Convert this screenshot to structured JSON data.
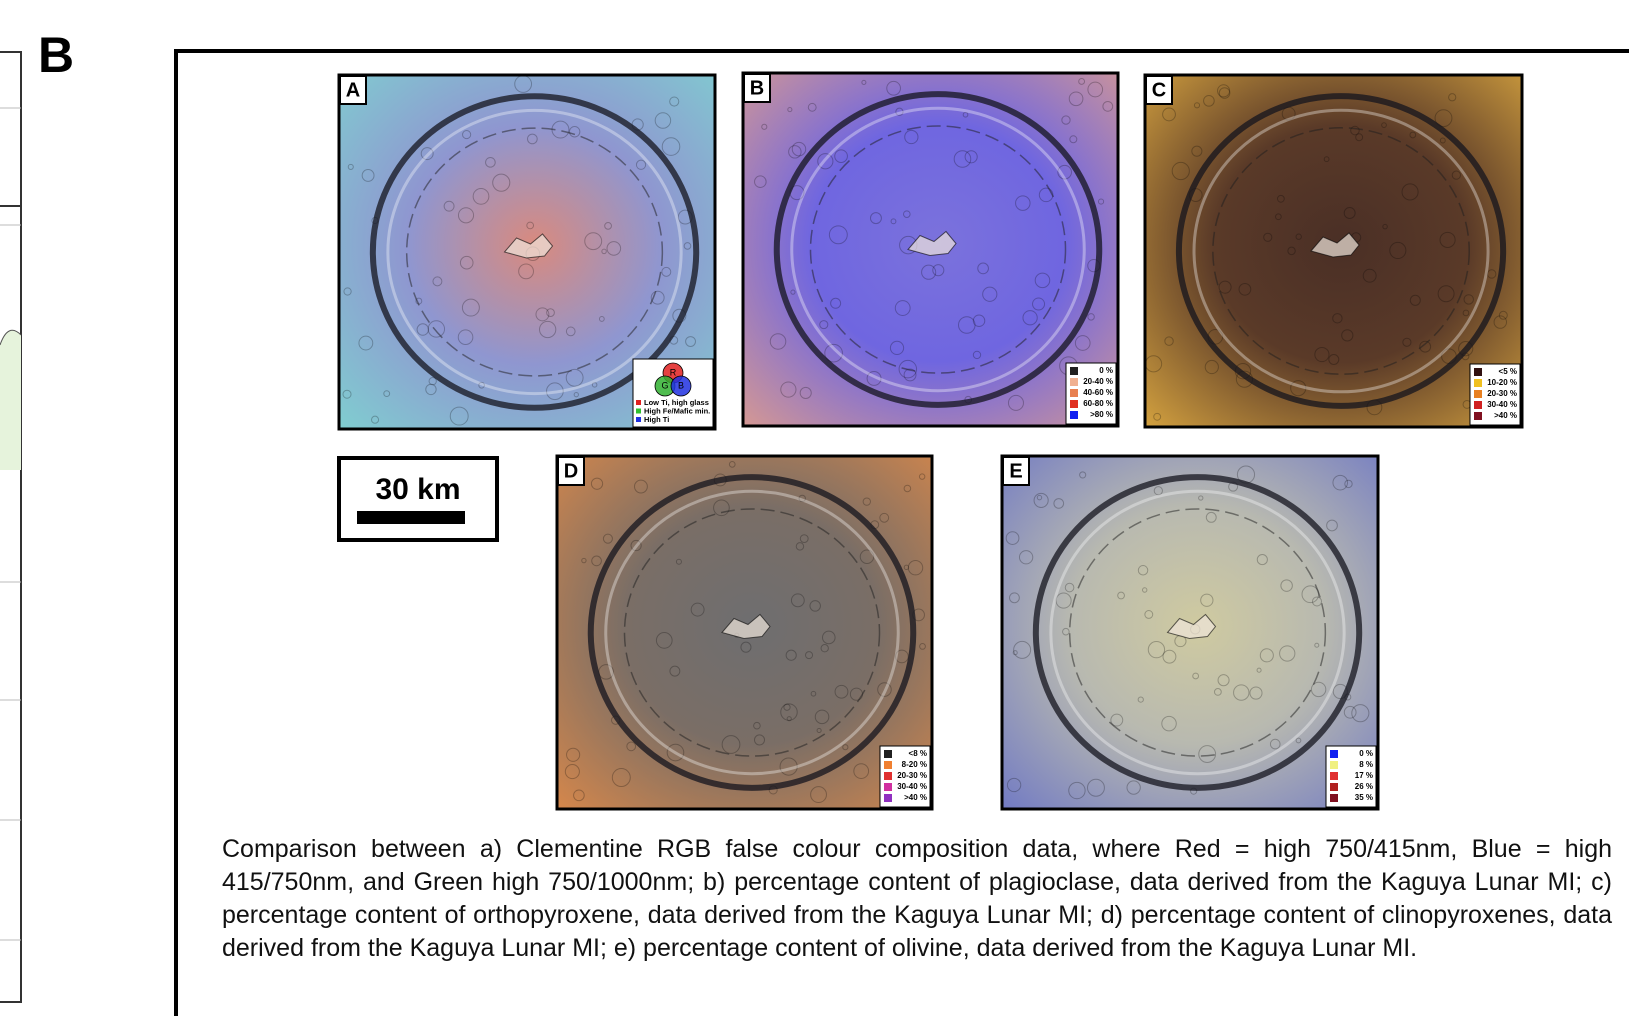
{
  "panel_label": "B",
  "maps": [
    {
      "label": "A",
      "rgb": [
        "R",
        "G",
        "B"
      ],
      "legend": [
        {
          "label": "Low Ti, high glass",
          "color": "#e02020"
        },
        {
          "label": "High Fe/Mafic min.",
          "color": "#30c030"
        },
        {
          "label": "High Ti",
          "color": "#2030e0"
        }
      ]
    },
    {
      "label": "B",
      "legend": [
        {
          "label": "0 %",
          "color": "#202020"
        },
        {
          "label": "20-40 %",
          "color": "#f0b090"
        },
        {
          "label": "40-60 %",
          "color": "#e88050"
        },
        {
          "label": "60-80 %",
          "color": "#e03020"
        },
        {
          "label": ">80 %",
          "color": "#1020f0"
        }
      ]
    },
    {
      "label": "C",
      "legend": [
        {
          "label": "<5 %",
          "color": "#301010"
        },
        {
          "label": "10-20 %",
          "color": "#f0c020"
        },
        {
          "label": "20-30 %",
          "color": "#e88020"
        },
        {
          "label": "30-40 %",
          "color": "#d02020"
        },
        {
          "label": ">40 %",
          "color": "#801020"
        }
      ]
    },
    {
      "label": "D",
      "legend": [
        {
          "label": "<8 %",
          "color": "#202020"
        },
        {
          "label": "8-20 %",
          "color": "#f08030"
        },
        {
          "label": "20-30 %",
          "color": "#e03030"
        },
        {
          "label": "30-40 %",
          "color": "#d030a0"
        },
        {
          "label": ">40 %",
          "color": "#9030c0"
        }
      ]
    },
    {
      "label": "E",
      "legend": [
        {
          "label": "0 %",
          "color": "#1020f0"
        },
        {
          "label": "8 %",
          "color": "#f0f080"
        },
        {
          "label": "17 %",
          "color": "#e03030"
        },
        {
          "label": "26 %",
          "color": "#b02020"
        },
        {
          "label": "35 %",
          "color": "#801020"
        }
      ]
    }
  ],
  "scale_bar": "30 km",
  "caption": "Comparison between a) Clementine RGB false colour composition data, where Red = high 750/415nm, Blue = high 415/750nm, and Green high 750/1000nm; b) percentage content of plagioclase, data derived from the Kaguya Lunar MI; c) percentage content of orthopyroxene, data derived from the Kaguya Lunar MI; d) percentage content of clinopyroxenes, data derived from the Kaguya Lunar MI; e) percentage content of olivine, data derived from the Kaguya Lunar MI."
}
